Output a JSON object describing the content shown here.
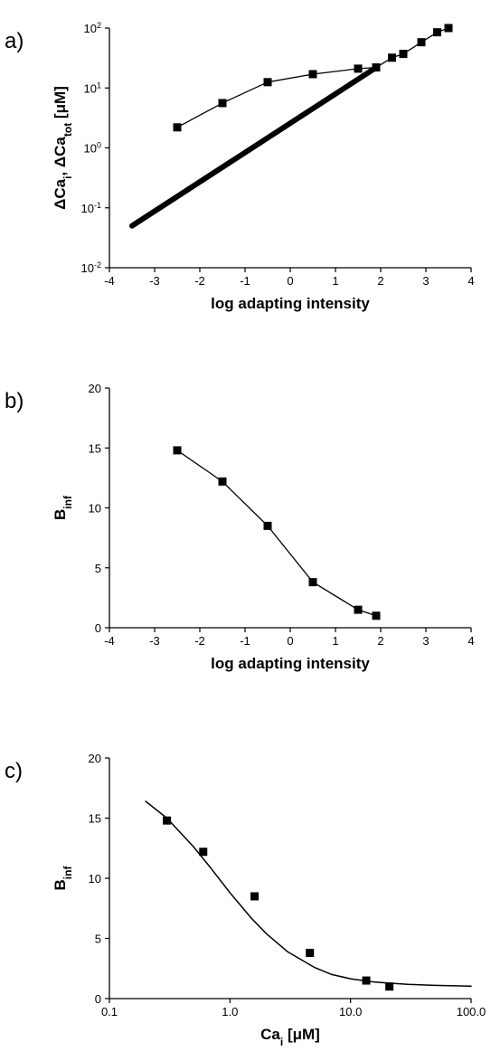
{
  "chart_data": [
    {
      "type": "line",
      "panel_label": "a)",
      "xlabel": "log adapting intensity",
      "ylabel_parts": [
        "ΔCa",
        "i",
        ", ΔCa",
        "tot",
        " [μM]"
      ],
      "y_scale": "log",
      "xlim": [
        -4,
        4
      ],
      "ylim": [
        0.01,
        100
      ],
      "x_ticks": [
        "-4",
        "-3",
        "-2",
        "-1",
        "0",
        "1",
        "2",
        "3",
        "4"
      ],
      "y_ticks": [
        {
          "value": 0.01,
          "base": "10",
          "exp": "-2"
        },
        {
          "value": 0.1,
          "base": "10",
          "exp": "-1"
        },
        {
          "value": 1,
          "base": "10",
          "exp": "0"
        },
        {
          "value": 10,
          "base": "10",
          "exp": "1"
        },
        {
          "value": 100,
          "base": "10",
          "exp": "2"
        }
      ],
      "series": [
        {
          "markers": true,
          "x": [
            -2.5,
            -1.5,
            -0.5,
            0.5,
            1.5,
            1.9,
            2.25,
            2.5,
            2.9,
            3.25,
            3.5
          ],
          "y": [
            2.2,
            5.6,
            12.5,
            17,
            21,
            22,
            32,
            37,
            58,
            85,
            100
          ]
        },
        {
          "markers": false,
          "thick": true,
          "x": [
            -3.5,
            1.9
          ],
          "y": [
            0.05,
            22
          ]
        }
      ]
    },
    {
      "type": "line",
      "panel_label": "b)",
      "xlabel": "log adapting intensity",
      "ylabel_parts": [
        "B",
        "inf"
      ],
      "y_scale": "linear",
      "xlim": [
        -4,
        4
      ],
      "ylim": [
        0,
        20
      ],
      "x_ticks": [
        "-4",
        "-3",
        "-2",
        "-1",
        "0",
        "1",
        "2",
        "3",
        "4"
      ],
      "y_ticks": [
        "0",
        "5",
        "10",
        "15",
        "20"
      ],
      "series": [
        {
          "markers": true,
          "x": [
            -2.5,
            -1.5,
            -0.5,
            0.5,
            1.5,
            1.9
          ],
          "y": [
            14.8,
            12.2,
            8.5,
            3.8,
            1.5,
            1.0
          ]
        }
      ]
    },
    {
      "type": "scatter",
      "panel_label": "c)",
      "xlabel_parts": [
        "Ca",
        "i",
        " [μM]"
      ],
      "ylabel_parts": [
        "B",
        "inf"
      ],
      "x_scale": "log",
      "y_scale": "linear",
      "xlim": [
        0.1,
        100
      ],
      "ylim": [
        0,
        20
      ],
      "x_ticks": [
        "0.1",
        "1.0",
        "10.0",
        "100.0"
      ],
      "y_ticks": [
        "0",
        "5",
        "10",
        "15",
        "20"
      ],
      "points": {
        "x": [
          0.3,
          0.6,
          1.6,
          4.6,
          13.5,
          21
        ],
        "y": [
          14.8,
          12.2,
          8.5,
          3.8,
          1.5,
          1.0
        ]
      },
      "fit_curve": {
        "x": [
          0.2,
          0.3,
          0.5,
          0.7,
          1.0,
          1.5,
          2.0,
          3.0,
          5.0,
          7.0,
          10.0,
          15.0,
          20.0,
          30.0,
          50.0,
          100.0
        ],
        "y": [
          16.4,
          15.0,
          12.6,
          10.8,
          8.8,
          6.7,
          5.4,
          3.9,
          2.6,
          2.0,
          1.65,
          1.4,
          1.3,
          1.18,
          1.1,
          1.03
        ]
      }
    }
  ]
}
